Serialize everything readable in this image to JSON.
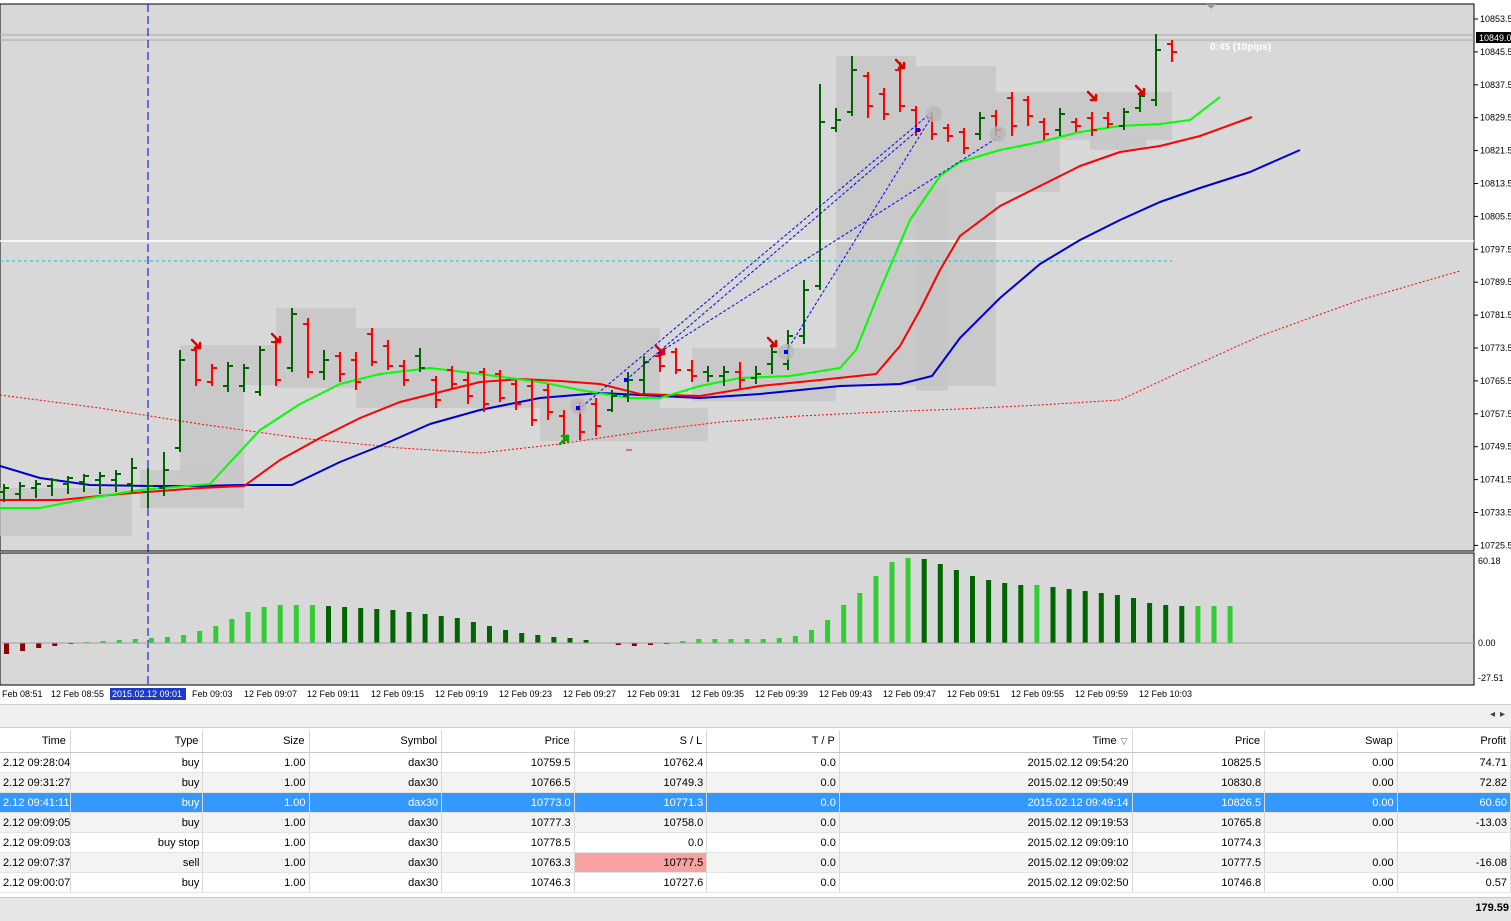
{
  "chart": {
    "price_ticks": [
      "10853.5",
      "10845.5",
      "10837.5",
      "10829.5",
      "10821.5",
      "10813.5",
      "10805.5",
      "10797.5",
      "10789.5",
      "10781.5",
      "10773.5",
      "10765.5",
      "10757.5",
      "10749.5",
      "10741.5",
      "10733.5",
      "10725.5"
    ],
    "current_price_label": "10849.0",
    "countdown_label": "0:45 (10pips)",
    "time_ticks": [
      "Feb 08:51",
      "12 Feb 08:55",
      "2015.02.12 09:01",
      "Feb 09:03",
      "12 Feb 09:07",
      "12 Feb 09:11",
      "12 Feb 09:15",
      "12 Feb 09:19",
      "12 Feb 09:23",
      "12 Feb 09:27",
      "12 Feb 09:31",
      "12 Feb 09:35",
      "12 Feb 09:39",
      "12 Feb 09:43",
      "12 Feb 09:47",
      "12 Feb 09:51",
      "12 Feb 09:55",
      "12 Feb 09:59",
      "12 Feb 10:03"
    ],
    "oscillator_ticks": [
      "60.18",
      "0.00",
      "-27.51"
    ],
    "colors": {
      "up_bar": "#006400",
      "down_bar": "#ff0000",
      "ma_fast": "#00ff00",
      "ma_mid": "#ff0000",
      "ma_slow": "#0000cc",
      "hist_up_strong": "#32cd32",
      "hist_up_weak": "#006400",
      "hist_down": "#8b0000",
      "time_highlight": "#1a3cc8"
    }
  },
  "table": {
    "columns": [
      "Time",
      "Type",
      "Size",
      "Symbol",
      "Price",
      "S / L",
      "T / P",
      "Time",
      "Price",
      "Swap",
      "Profit"
    ],
    "rows": [
      {
        "time": "2.12 09:28:04",
        "type": "buy",
        "size": "1.00",
        "symbol": "dax30",
        "price": "10759.5",
        "sl": "10762.4",
        "tp": "0.0",
        "close_time": "2015.02.12 09:54:20",
        "close_price": "10825.5",
        "swap": "0.00",
        "profit": "74.71"
      },
      {
        "time": "2.12 09:31:27",
        "type": "buy",
        "size": "1.00",
        "symbol": "dax30",
        "price": "10766.5",
        "sl": "10749.3",
        "tp": "0.0",
        "close_time": "2015.02.12 09:50:49",
        "close_price": "10830.8",
        "swap": "0.00",
        "profit": "72.82"
      },
      {
        "time": "2.12 09:41:11",
        "type": "buy",
        "size": "1.00",
        "symbol": "dax30",
        "price": "10773.0",
        "sl": "10771.3",
        "tp": "0.0",
        "close_time": "2015.02.12 09:49:14",
        "close_price": "10826.5",
        "swap": "0.00",
        "profit": "60.60"
      },
      {
        "time": "2.12 09:09:05",
        "type": "buy",
        "size": "1.00",
        "symbol": "dax30",
        "price": "10777.3",
        "sl": "10758.0",
        "tp": "0.0",
        "close_time": "2015.02.12 09:19:53",
        "close_price": "10765.8",
        "swap": "0.00",
        "profit": "-13.03"
      },
      {
        "time": "2.12 09:09:03",
        "type": "buy stop",
        "size": "1.00",
        "symbol": "dax30",
        "price": "10778.5",
        "sl": "0.0",
        "tp": "0.0",
        "close_time": "2015.02.12 09:09:10",
        "close_price": "10774.3",
        "swap": "",
        "profit": ""
      },
      {
        "time": "2.12 09:07:37",
        "type": "sell",
        "size": "1.00",
        "symbol": "dax30",
        "price": "10763.3",
        "sl": "10777.5",
        "tp": "0.0",
        "close_time": "2015.02.12 09:09:02",
        "close_price": "10777.5",
        "swap": "0.00",
        "profit": "-16.08"
      },
      {
        "time": "2.12 09:00:07",
        "type": "buy",
        "size": "1.00",
        "symbol": "dax30",
        "price": "10746.3",
        "sl": "10727.6",
        "tp": "0.0",
        "close_time": "2015.02.12 09:02:50",
        "close_price": "10746.8",
        "swap": "0.00",
        "profit": "0.57"
      }
    ],
    "total_profit": "179.59"
  }
}
